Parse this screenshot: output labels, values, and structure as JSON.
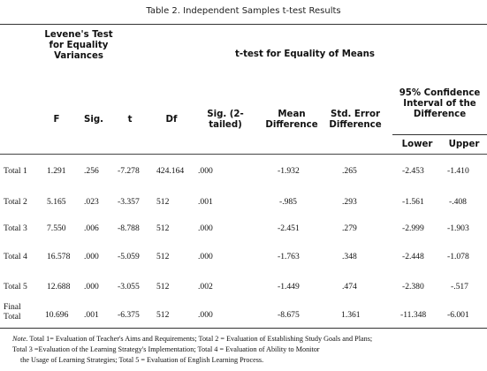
{
  "caption": "Table 2. Independent Samples t-test Results",
  "headers": {
    "levene": "Levene's Test for Equality Variances",
    "ttest": "t-test for Equality of Means",
    "ci": "95% Confidence Interval of the Difference",
    "F": "F",
    "sig": "Sig.",
    "t": "t",
    "df": "Df",
    "sig2": "Sig. (2-tailed)",
    "mean_diff": "Mean Difference",
    "se_diff": "Std. Error Difference",
    "lower": "Lower",
    "upper": "Upper"
  },
  "rows": [
    {
      "label": "Total 1",
      "F": "1.291",
      "sig": ".256",
      "t": "-7.278",
      "df": "424.164",
      "sig2": ".000",
      "mean": "-1.932",
      "se": ".265",
      "lower": "-2.453",
      "upper": "-1.410"
    },
    {
      "label": "Total 2",
      "F": "5.165",
      "sig": ".023",
      "t": "-3.357",
      "df": "512",
      "sig2": ".001",
      "mean": "-.985",
      "se": ".293",
      "lower": "-1.561",
      "upper": "-.408"
    },
    {
      "label": "Total 3",
      "F": "7.550",
      "sig": ".006",
      "t": "-8.788",
      "df": "512",
      "sig2": ".000",
      "mean": "-2.451",
      "se": ".279",
      "lower": "-2.999",
      "upper": "-1.903"
    },
    {
      "label": "Total 4",
      "F": "16.578",
      "sig": ".000",
      "t": "-5.059",
      "df": "512",
      "sig2": ".000",
      "mean": "-1.763",
      "se": ".348",
      "lower": "-2.448",
      "upper": "-1.078"
    },
    {
      "label": "Total 5",
      "F": "12.688",
      "sig": ".000",
      "t": "-3.055",
      "df": "512",
      "sig2": ".002",
      "mean": "-1.449",
      "se": ".474",
      "lower": "-2.380",
      "upper": "-.517"
    },
    {
      "label": "Final Total",
      "F": "10.696",
      "sig": ".001",
      "t": "-6.375",
      "df": "512",
      "sig2": ".000",
      "mean": "-8.675",
      "se": "1.361",
      "lower": "-11.348",
      "upper": "-6.001"
    }
  ],
  "note": {
    "prefix": "Note.",
    "line1": "Total 1= Evaluation of Teacher's Aims and Requirements; Total 2 = Evaluation of Establishing Study Goals and Plans;",
    "line2": "Total 3 =Evaluation of the Learning Strategy's Implementation; Total 4 = Evaluation of Ability to Monitor",
    "line3": "the Usage of Learning Strategies; Total 5 = Evaluation of English Learning Process."
  }
}
